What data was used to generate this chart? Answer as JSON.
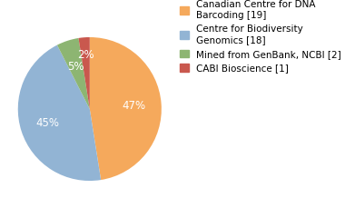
{
  "labels": [
    "Canadian Centre for DNA\nBarcoding [19]",
    "Centre for Biodiversity\nGenomics [18]",
    "Mined from GenBank, NCBI [2]",
    "CABI Bioscience [1]"
  ],
  "values": [
    19,
    18,
    2,
    1
  ],
  "colors": [
    "#f5a95c",
    "#92b4d4",
    "#8db572",
    "#c9584e"
  ],
  "pct_labels": [
    "47%",
    "45%",
    "5%",
    "2%"
  ],
  "startangle": 90,
  "legend_fontsize": 7.5,
  "pct_fontsize": 8.5,
  "figsize": [
    3.8,
    2.4
  ],
  "dpi": 100
}
